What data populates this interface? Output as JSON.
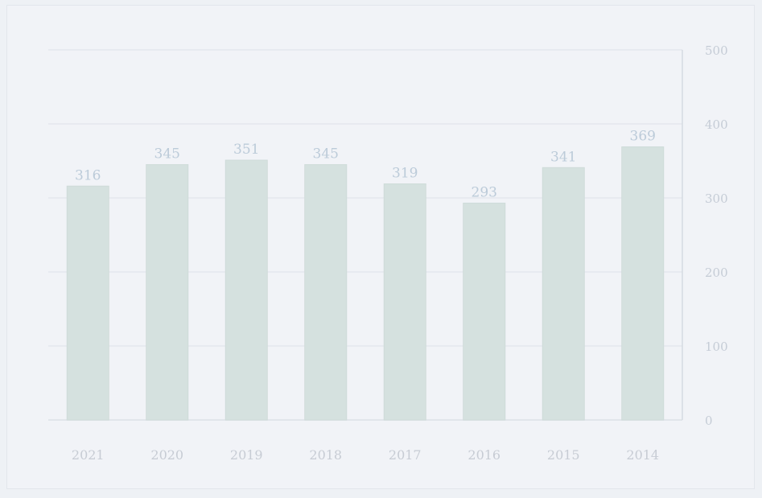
{
  "chart_data": {
    "type": "bar",
    "categories": [
      "2021",
      "2020",
      "2019",
      "2018",
      "2017",
      "2016",
      "2015",
      "2014"
    ],
    "values": [
      316,
      345,
      351,
      345,
      319,
      293,
      341,
      369
    ],
    "ylim": [
      0,
      500
    ],
    "yticks": [
      0,
      100,
      200,
      300,
      400,
      500
    ],
    "ytick_labels": [
      "0",
      "100",
      "200",
      "300",
      "400",
      "500"
    ],
    "grid": true,
    "colors": {
      "bar": "#d5e1df",
      "bar_edge": "#cfdbd9",
      "label": "#bccbd9",
      "grid": "#e1e5eb",
      "axis": "#d6dbe2"
    }
  }
}
